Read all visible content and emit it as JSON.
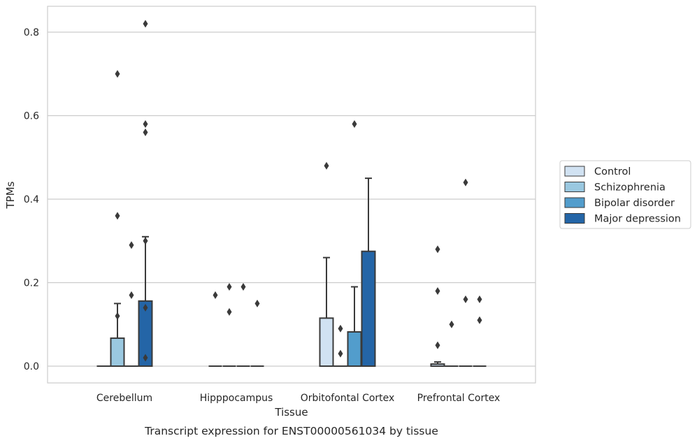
{
  "chart_data": {
    "type": "box",
    "xlabel": "Tissue",
    "ylabel": "TPMs",
    "caption": "Transcript expression for ENST00000561034 by tissue",
    "ylim": [
      -0.04,
      0.86
    ],
    "yticks": [
      0.0,
      0.2,
      0.4,
      0.6,
      0.8
    ],
    "ytick_labels": [
      "0.0",
      "0.2",
      "0.4",
      "0.6",
      "0.8"
    ],
    "categories": [
      "Cerebellum",
      "Hipppocampus",
      "Orbitofontal Cortex",
      "Prefrontal Cortex"
    ],
    "grid": "horizontal",
    "legend_position": "right",
    "colors": [
      "#d1e2f2",
      "#9ac8e0",
      "#529dcc",
      "#2465a7"
    ],
    "series": [
      {
        "name": "Control",
        "boxes": [
          {
            "q1": 0,
            "median": 0,
            "q3": 0,
            "whisker_low": 0,
            "whisker_high": 0,
            "outliers": []
          },
          {
            "q1": 0,
            "median": 0,
            "q3": 0,
            "whisker_low": 0,
            "whisker_high": 0,
            "outliers": [
              0.17
            ]
          },
          {
            "q1": 0,
            "median": 0,
            "q3": 0.115,
            "whisker_low": 0,
            "whisker_high": 0.26,
            "outliers": [
              0.48
            ]
          },
          {
            "q1": 0,
            "median": 0,
            "q3": 0.005,
            "whisker_low": 0,
            "whisker_high": 0.01,
            "outliers": [
              0.28,
              0.18,
              0.05
            ]
          }
        ]
      },
      {
        "name": "Schizophrenia",
        "boxes": [
          {
            "q1": 0,
            "median": 0,
            "q3": 0.067,
            "whisker_low": 0,
            "whisker_high": 0.15,
            "outliers": [
              0.7,
              0.36,
              0.12
            ]
          },
          {
            "q1": 0,
            "median": 0,
            "q3": 0,
            "whisker_low": 0,
            "whisker_high": 0,
            "outliers": [
              0.13,
              0.19
            ]
          },
          {
            "q1": 0,
            "median": 0,
            "q3": 0,
            "whisker_low": 0,
            "whisker_high": 0,
            "outliers": [
              0.09,
              0.03
            ]
          },
          {
            "q1": 0,
            "median": 0,
            "q3": 0,
            "whisker_low": 0,
            "whisker_high": 0,
            "outliers": [
              0.1
            ]
          }
        ]
      },
      {
        "name": "Bipolar disorder",
        "boxes": [
          {
            "q1": 0,
            "median": 0,
            "q3": 0,
            "whisker_low": 0,
            "whisker_high": 0,
            "outliers": [
              0.29,
              0.17
            ]
          },
          {
            "q1": 0,
            "median": 0,
            "q3": 0,
            "whisker_low": 0,
            "whisker_high": 0,
            "outliers": [
              0.19
            ]
          },
          {
            "q1": 0,
            "median": 0,
            "q3": 0.082,
            "whisker_low": 0,
            "whisker_high": 0.19,
            "outliers": [
              0.58
            ]
          },
          {
            "q1": 0,
            "median": 0,
            "q3": 0,
            "whisker_low": 0,
            "whisker_high": 0,
            "outliers": [
              0.44,
              0.16
            ]
          }
        ]
      },
      {
        "name": "Major depression",
        "boxes": [
          {
            "q1": 0,
            "median": 0,
            "q3": 0.156,
            "whisker_low": 0,
            "whisker_high": 0.31,
            "outliers": [
              0.82,
              0.58,
              0.56,
              0.3,
              0.14,
              0.02
            ]
          },
          {
            "q1": 0,
            "median": 0,
            "q3": 0,
            "whisker_low": 0,
            "whisker_high": 0,
            "outliers": [
              0.15
            ]
          },
          {
            "q1": 0,
            "median": 0,
            "q3": 0.275,
            "whisker_low": 0,
            "whisker_high": 0.45,
            "outliers": []
          },
          {
            "q1": 0,
            "median": 0,
            "q3": 0,
            "whisker_low": 0,
            "whisker_high": 0,
            "outliers": [
              0.16,
              0.11
            ]
          }
        ]
      }
    ]
  }
}
